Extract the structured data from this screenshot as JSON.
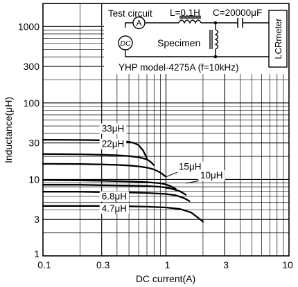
{
  "chart_data": {
    "type": "line",
    "x_scale": "log",
    "y_scale": "log",
    "xlim": [
      0.1,
      10
    ],
    "ylim": [
      1,
      2000
    ],
    "grid": true,
    "xlabel": "DC current(A)",
    "ylabel": "Inductance(μH)",
    "x_major_ticks": [
      {
        "value": 0.1,
        "label": "0.1"
      },
      {
        "value": 0.3,
        "label": "0.3"
      },
      {
        "value": 1,
        "label": "1"
      },
      {
        "value": 3,
        "label": "3"
      },
      {
        "value": 10,
        "label": "10"
      }
    ],
    "y_major_ticks": [
      {
        "value": 1,
        "label": "1"
      },
      {
        "value": 3,
        "label": "3"
      },
      {
        "value": 10,
        "label": "10"
      },
      {
        "value": 30,
        "label": "30"
      },
      {
        "value": 100,
        "label": "100"
      },
      {
        "value": 300,
        "label": "300"
      },
      {
        "value": 1000,
        "label": "1000"
      }
    ],
    "series": [
      {
        "name": "33μH",
        "x": [
          0.1,
          0.2,
          0.3,
          0.4,
          0.5,
          0.55,
          0.6,
          0.65,
          0.7
        ],
        "y": [
          33,
          32.8,
          32.5,
          32,
          31,
          30,
          28,
          24,
          19
        ]
      },
      {
        "name": "22μH",
        "x": [
          0.1,
          0.2,
          0.3,
          0.4,
          0.5,
          0.6,
          0.7,
          0.75,
          0.8
        ],
        "y": [
          21.5,
          21.3,
          21,
          20.7,
          20.2,
          19.5,
          18.3,
          17,
          15.3
        ]
      },
      {
        "name": "15μH",
        "x": [
          0.1,
          0.2,
          0.3,
          0.4,
          0.5,
          0.6,
          0.7,
          0.8,
          0.9,
          1.0
        ],
        "y": [
          16,
          15.9,
          15.7,
          15.5,
          15.2,
          14.8,
          14.3,
          13.5,
          12.3,
          10.8
        ]
      },
      {
        "name": "10μH",
        "x": [
          0.1,
          0.2,
          0.3,
          0.5,
          0.7,
          0.9,
          1.0,
          1.1,
          1.2
        ],
        "y": [
          9.8,
          9.7,
          9.6,
          9.4,
          9.2,
          8.9,
          8.6,
          8.1,
          7.5
        ]
      },
      {
        "name": "",
        "x": [
          0.1,
          0.2,
          0.3,
          0.5,
          0.7,
          0.9,
          1.1,
          1.3,
          1.45
        ],
        "y": [
          8.5,
          8.5,
          8.4,
          8.3,
          8.2,
          8.0,
          7.6,
          7.0,
          6.3
        ]
      },
      {
        "name": "6.8μH",
        "x": [
          0.1,
          0.2,
          0.3,
          0.5,
          0.7,
          1.0,
          1.2,
          1.4,
          1.55
        ],
        "y": [
          6.9,
          6.9,
          6.8,
          6.75,
          6.65,
          6.45,
          6.2,
          5.7,
          5.2
        ]
      },
      {
        "name": "4.7μH",
        "x": [
          0.1,
          0.2,
          0.3,
          0.5,
          0.7,
          1.0,
          1.3,
          1.6,
          1.8,
          2.0
        ],
        "y": [
          4.5,
          4.5,
          4.5,
          4.45,
          4.4,
          4.3,
          4.1,
          3.7,
          3.2,
          2.8
        ]
      }
    ],
    "series_labels": [
      {
        "text": "33μH",
        "x": 0.3,
        "y": 42
      },
      {
        "text": "22μH",
        "x": 0.3,
        "y": 26.5
      },
      {
        "text": "15μH",
        "x": 1.27,
        "y": 13.3
      },
      {
        "text": "10μH",
        "x": 1.9,
        "y": 10.3
      },
      {
        "text": "6.8μH",
        "x": 0.3,
        "y": 5.45
      },
      {
        "text": "4.7μH",
        "x": 0.3,
        "y": 3.8
      }
    ]
  },
  "inset": {
    "test_circuit": "Test circuit",
    "inductor": "L=0.1H",
    "capacitor": "C=20000μF",
    "ammeter": "A",
    "source": "DC",
    "specimen": "Specimen",
    "meter": "LCRmeter",
    "model": "YHP model-4275A (f=10kHz)"
  }
}
